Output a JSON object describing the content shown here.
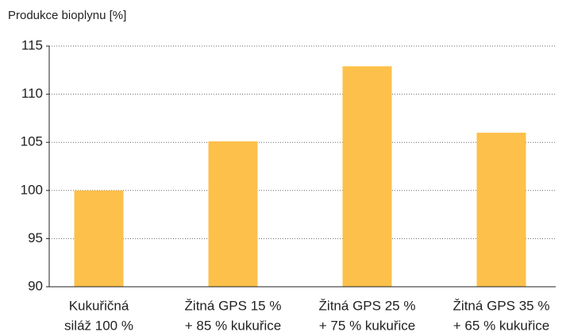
{
  "chart_data": {
    "type": "bar",
    "y_label": "Produkce bioplynu [%]",
    "categories": [
      [
        "Kukuřičná",
        "siláž 100 %"
      ],
      [
        "Žitná GPS 15 %",
        "+ 85 % kukuřice"
      ],
      [
        "Žitná GPS 25 %",
        "+ 75 % kukuřice"
      ],
      [
        "Žitná GPS 35 %",
        "+ 65 % kukuřice"
      ]
    ],
    "values": [
      100,
      105.1,
      112.9,
      106
    ],
    "color": "#fdc04a",
    "ylim": [
      90,
      115
    ],
    "yticks": [
      90,
      95,
      100,
      105,
      110,
      115
    ],
    "grid": true
  }
}
